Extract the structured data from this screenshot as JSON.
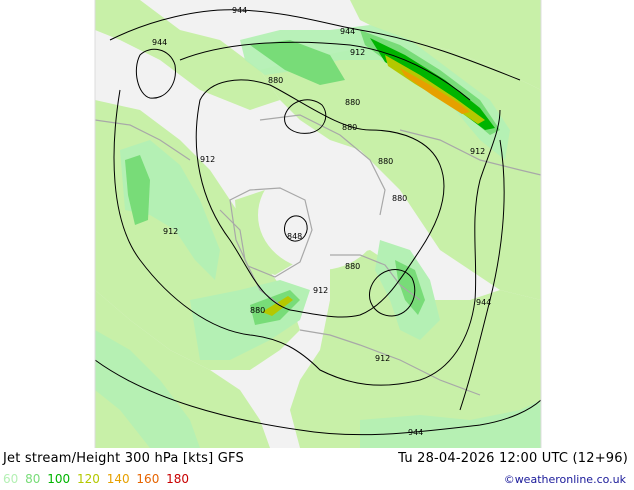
{
  "title": "Jet stream/Height 300 hPa [kts] GFS",
  "valid_time": "Tu 28-04-2026 12:00 UTC (12+96)",
  "credit": "©weatheronline.co.uk",
  "legend": [
    {
      "label": "60",
      "color": "#b4f0b4"
    },
    {
      "label": "80",
      "color": "#78dc78"
    },
    {
      "label": "100",
      "color": "#00b400"
    },
    {
      "label": "120",
      "color": "#b4c800"
    },
    {
      "label": "140",
      "color": "#e6a000"
    },
    {
      "label": "160",
      "color": "#e66400"
    },
    {
      "label": "180",
      "color": "#c80000"
    }
  ],
  "contour_labels": [
    {
      "text": "944"
    },
    {
      "text": "944"
    },
    {
      "text": "944"
    },
    {
      "text": "944"
    },
    {
      "text": "944"
    },
    {
      "text": "912"
    },
    {
      "text": "912"
    },
    {
      "text": "912"
    },
    {
      "text": "912"
    },
    {
      "text": "912"
    },
    {
      "text": "912"
    },
    {
      "text": "880"
    },
    {
      "text": "880"
    },
    {
      "text": "880"
    },
    {
      "text": "880"
    },
    {
      "text": "880"
    },
    {
      "text": "880"
    },
    {
      "text": "880"
    },
    {
      "text": "848"
    }
  ],
  "colors": {
    "land": "#c8f0a8",
    "sea": "#f4f4f4",
    "outside": "#ffffff",
    "coast": "#a8a8a8",
    "contour": "#000000"
  }
}
